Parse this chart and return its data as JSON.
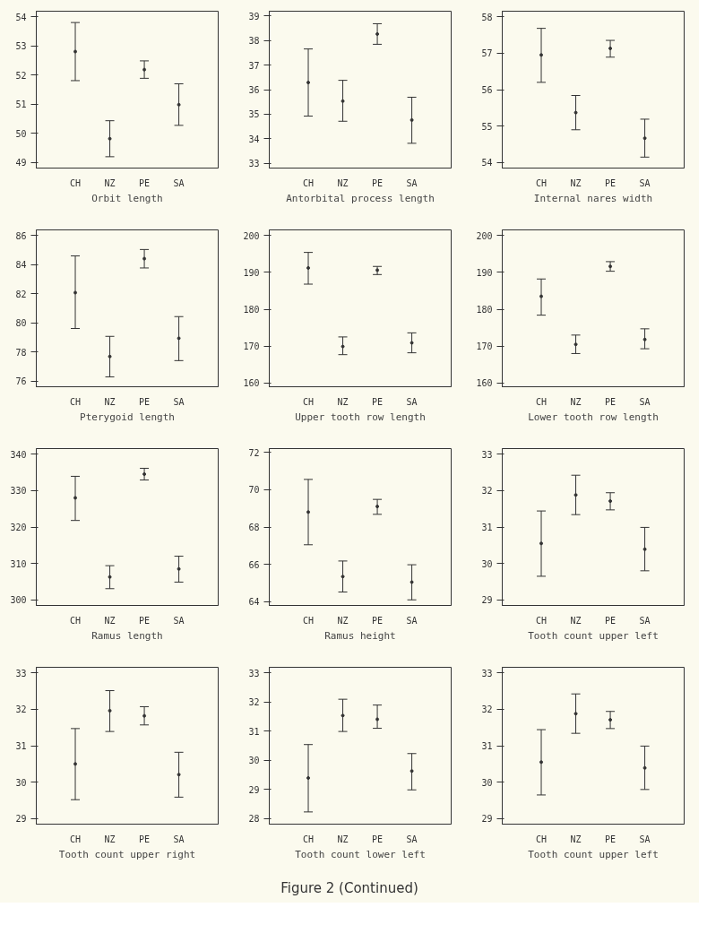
{
  "chart_data": [
    {
      "type": "scatter",
      "xlabel": "Orbit length",
      "categories": [
        "CH",
        "NZ",
        "PE",
        "SA"
      ],
      "values": [
        52.81,
        49.81,
        52.19,
        50.98
      ],
      "errors": [
        [
          51.81,
          53.81
        ],
        [
          49.19,
          50.43
        ],
        [
          51.89,
          52.49
        ],
        [
          50.27,
          51.7
        ]
      ],
      "ylim": [
        48.8,
        54.2
      ],
      "yticks": [
        49,
        50,
        51,
        52,
        53,
        54
      ],
      "marker": "circle",
      "grid": false
    },
    {
      "type": "scatter",
      "xlabel": "Antorbital process length",
      "categories": [
        "CH",
        "NZ",
        "PE",
        "SA"
      ],
      "values": [
        36.29,
        35.53,
        38.27,
        34.76
      ],
      "errors": [
        [
          34.92,
          37.66
        ],
        [
          34.71,
          36.38
        ],
        [
          37.85,
          38.69
        ],
        [
          33.81,
          35.69
        ]
      ],
      "ylim": [
        32.8,
        39.2
      ],
      "yticks": [
        33,
        34,
        35,
        36,
        37,
        38,
        39
      ],
      "marker": "circle",
      "grid": false
    },
    {
      "type": "scatter",
      "xlabel": "Internal nares width",
      "categories": [
        "CH",
        "NZ",
        "PE",
        "SA"
      ],
      "values": [
        56.95,
        55.37,
        57.13,
        54.67
      ],
      "errors": [
        [
          56.2,
          57.68
        ],
        [
          54.9,
          55.84
        ],
        [
          56.89,
          57.35
        ],
        [
          54.15,
          55.19
        ]
      ],
      "ylim": [
        53.85,
        58.15
      ],
      "yticks": [
        54,
        55,
        56,
        57,
        58
      ],
      "marker": "circle",
      "grid": false
    },
    {
      "type": "scatter",
      "xlabel": "Pterygoid length",
      "categories": [
        "CH",
        "NZ",
        "PE",
        "SA"
      ],
      "values": [
        82.08,
        77.68,
        84.42,
        78.94
      ],
      "errors": [
        [
          79.61,
          84.61
        ],
        [
          76.28,
          79.07
        ],
        [
          83.78,
          85.05
        ],
        [
          77.4,
          80.43
        ]
      ],
      "ylim": [
        75.6,
        86.4
      ],
      "yticks": [
        76,
        78,
        80,
        82,
        84,
        86
      ],
      "marker": "circle",
      "grid": false
    },
    {
      "type": "scatter",
      "xlabel": "Upper tooth row length",
      "categories": [
        "CH",
        "NZ",
        "PE",
        "SA"
      ],
      "values": [
        191.2,
        169.9,
        190.6,
        170.9
      ],
      "errors": [
        [
          186.8,
          195.4
        ],
        [
          167.7,
          172.5
        ],
        [
          189.4,
          191.6
        ],
        [
          168.2,
          173.6
        ]
      ],
      "ylim": [
        159,
        201.5
      ],
      "yticks": [
        160,
        170,
        180,
        190,
        200
      ],
      "marker": "circle",
      "grid": false
    },
    {
      "type": "scatter",
      "xlabel": "Lower tooth row length",
      "categories": [
        "CH",
        "NZ",
        "PE",
        "SA"
      ],
      "values": [
        183.5,
        170.5,
        191.6,
        171.8
      ],
      "errors": [
        [
          178.4,
          188.2
        ],
        [
          168.0,
          173.0
        ],
        [
          190.3,
          192.9
        ],
        [
          169.3,
          174.7
        ]
      ],
      "ylim": [
        159,
        201.5
      ],
      "yticks": [
        160,
        170,
        180,
        190,
        200
      ],
      "marker": "circle",
      "grid": false
    },
    {
      "type": "scatter",
      "xlabel": "Ramus length",
      "categories": [
        "CH",
        "NZ",
        "PE",
        "SA"
      ],
      "values": [
        328.0,
        306.3,
        334.5,
        308.5
      ],
      "errors": [
        [
          321.8,
          333.9
        ],
        [
          303.1,
          309.4
        ],
        [
          332.9,
          336.1
        ],
        [
          304.9,
          312.0
        ]
      ],
      "ylim": [
        298.5,
        341.5
      ],
      "yticks": [
        300,
        310,
        320,
        330,
        340
      ],
      "marker": "circle",
      "grid": false
    },
    {
      "type": "scatter",
      "xlabel": "Ramus height",
      "categories": [
        "CH",
        "NZ",
        "PE",
        "SA"
      ],
      "values": [
        68.8,
        65.35,
        69.1,
        65.05
      ],
      "errors": [
        [
          67.05,
          70.55
        ],
        [
          64.52,
          66.18
        ],
        [
          68.68,
          69.48
        ],
        [
          64.1,
          65.98
        ]
      ],
      "ylim": [
        63.8,
        72.2
      ],
      "yticks": [
        64,
        66,
        68,
        70,
        72
      ],
      "marker": "circle",
      "grid": false
    },
    {
      "type": "scatter",
      "xlabel": "Tooth count upper left",
      "categories": [
        "CH",
        "NZ",
        "PE",
        "SA"
      ],
      "values": [
        30.55,
        31.88,
        31.71,
        30.39
      ],
      "errors": [
        [
          29.65,
          31.44
        ],
        [
          31.34,
          32.42
        ],
        [
          31.47,
          31.94
        ],
        [
          29.8,
          30.99
        ]
      ],
      "ylim": [
        28.85,
        33.15
      ],
      "yticks": [
        29,
        30,
        31,
        32,
        33
      ],
      "marker": "circle",
      "grid": false
    },
    {
      "type": "scatter",
      "xlabel": "Tooth count upper right",
      "categories": [
        "CH",
        "NZ",
        "PE",
        "SA"
      ],
      "values": [
        30.5,
        31.96,
        31.82,
        30.21
      ],
      "errors": [
        [
          29.52,
          31.47
        ],
        [
          31.39,
          32.51
        ],
        [
          31.57,
          32.07
        ],
        [
          29.59,
          30.82
        ]
      ],
      "ylim": [
        28.85,
        33.15
      ],
      "yticks": [
        29,
        30,
        31,
        32,
        33
      ],
      "marker": "circle",
      "grid": false
    },
    {
      "type": "scatter",
      "xlabel": "Tooth count lower left",
      "categories": [
        "CH",
        "NZ",
        "PE",
        "SA"
      ],
      "values": [
        29.39,
        31.54,
        31.41,
        29.63
      ],
      "errors": [
        [
          28.22,
          30.54
        ],
        [
          30.99,
          32.1
        ],
        [
          31.1,
          31.9
        ],
        [
          28.98,
          30.23
        ]
      ],
      "ylim": [
        27.8,
        33.2
      ],
      "yticks": [
        28,
        29,
        30,
        31,
        32,
        33
      ],
      "marker": "circle",
      "grid": false
    },
    {
      "type": "scatter",
      "xlabel": "Tooth count upper left",
      "categories": [
        "CH",
        "NZ",
        "PE",
        "SA"
      ],
      "values": [
        30.55,
        31.88,
        31.71,
        30.39
      ],
      "errors": [
        [
          29.65,
          31.44
        ],
        [
          31.34,
          32.42
        ],
        [
          31.47,
          31.94
        ],
        [
          29.8,
          30.99
        ]
      ],
      "ylim": [
        28.85,
        33.15
      ],
      "yticks": [
        29,
        30,
        31,
        32,
        33
      ],
      "marker": "circle",
      "grid": false,
      "annotations": [
        "Figure 2 (Continued)"
      ]
    }
  ]
}
